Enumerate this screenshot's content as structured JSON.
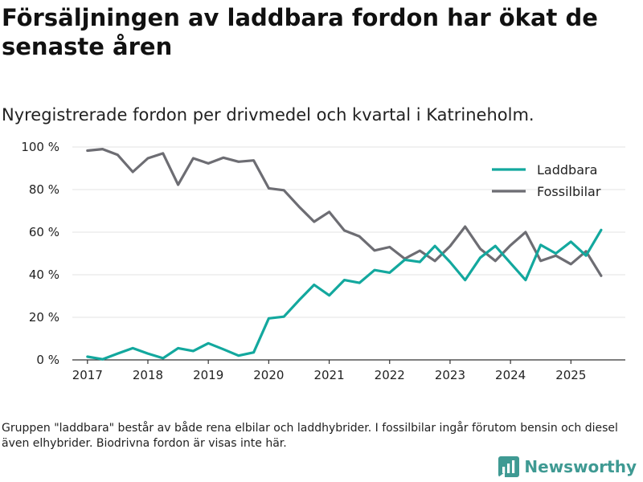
{
  "title": "Försäljningen av laddbara fordon har ökat de senaste åren",
  "subtitle": "Nyregistrerade fordon per drivmedel och kvartal i Katrineholm.",
  "footnote": "Gruppen \"laddbara\" består av både rena elbilar och laddhybrider. I fossilbilar ingår förutom bensin och diesel även elhybrider. Biodrivna fordon är visas inte här.",
  "brand": "Newsworthy",
  "colors": {
    "laddbara": "#13a89e",
    "fossil": "#6d6d73",
    "grid": "#e3e3e3",
    "axis": "#333333",
    "brand": "#3f9a93"
  },
  "chart_data": {
    "type": "line",
    "title": "Nyregistrerade fordon per drivmedel och kvartal i Katrineholm.",
    "xlabel": "",
    "ylabel": "",
    "ylim": [
      0,
      100
    ],
    "xlim": [
      2016.75,
      2025.9
    ],
    "grid": true,
    "legend_position": "top-right",
    "y_ticks": [
      0,
      20,
      40,
      60,
      80,
      100
    ],
    "y_tick_labels": [
      "0 %",
      "20 %",
      "40 %",
      "60 %",
      "80 %",
      "100 %"
    ],
    "x_ticks": [
      2017,
      2018,
      2019,
      2020,
      2021,
      2022,
      2023,
      2024,
      2025
    ],
    "x_tick_labels": [
      "2017",
      "2018",
      "2019",
      "2020",
      "2021",
      "2022",
      "2023",
      "2024",
      "2025"
    ],
    "x": [
      2017.0,
      2017.25,
      2017.5,
      2017.75,
      2018.0,
      2018.25,
      2018.5,
      2018.75,
      2019.0,
      2019.25,
      2019.5,
      2019.75,
      2020.0,
      2020.25,
      2020.5,
      2020.75,
      2021.0,
      2021.25,
      2021.5,
      2021.75,
      2022.0,
      2022.25,
      2022.5,
      2022.75,
      2023.0,
      2023.25,
      2023.5,
      2023.75,
      2024.0,
      2024.25,
      2024.5,
      2024.75,
      2025.0,
      2025.25,
      2025.5
    ],
    "series": [
      {
        "name": "Laddbara",
        "values": [
          1.5,
          0.3,
          3,
          5.5,
          3,
          0.8,
          5.5,
          4.2,
          7.8,
          5,
          2,
          3.5,
          19.5,
          20.3,
          28,
          35.3,
          30.3,
          37.5,
          36.2,
          42.2,
          41,
          47,
          46,
          53.5,
          46,
          37.5,
          48,
          53.5,
          45.5,
          37.5,
          54,
          50,
          55.5,
          49,
          61
        ]
      },
      {
        "name": "Fossilbilar",
        "values": [
          98.3,
          99,
          96.3,
          88.3,
          94.7,
          97,
          82.3,
          94.7,
          92.3,
          95,
          93.1,
          93.7,
          80.6,
          79.7,
          72,
          64.9,
          69.5,
          60.8,
          58,
          51.4,
          53,
          47.5,
          51.3,
          46.5,
          53.4,
          62.6,
          52.2,
          46.5,
          53.8,
          60,
          46.5,
          49,
          45,
          51,
          39.5
        ]
      }
    ]
  }
}
